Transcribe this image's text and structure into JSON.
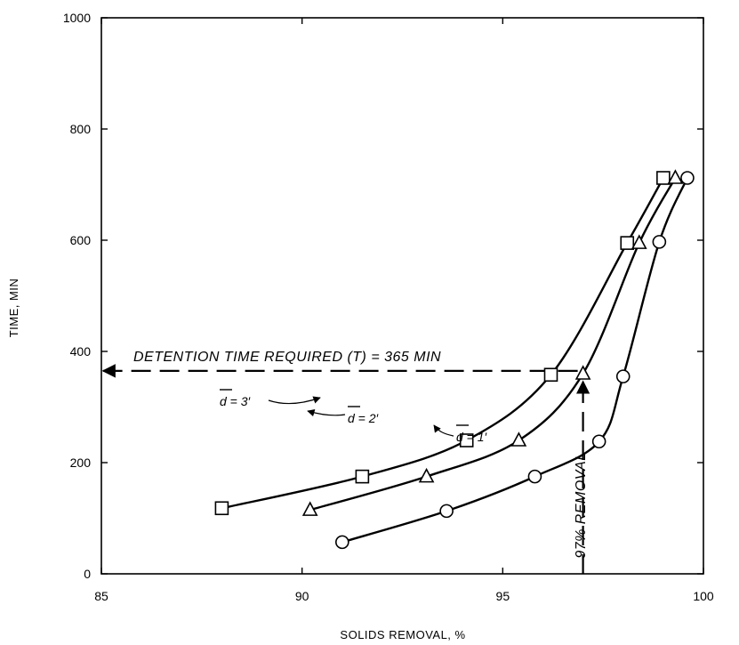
{
  "chart_data": {
    "type": "line",
    "title": "",
    "xlabel": "SOLIDS REMOVAL, %",
    "ylabel": "TIME, MIN",
    "xlim": [
      85,
      100
    ],
    "ylim": [
      0,
      1000
    ],
    "xticks": [
      85,
      90,
      95,
      100
    ],
    "yticks": [
      0,
      200,
      400,
      600,
      800,
      1000
    ],
    "grid": false,
    "series": [
      {
        "name": "d = 3′",
        "marker": "square",
        "x": [
          88.0,
          91.5,
          94.1,
          96.2,
          98.1,
          99.0
        ],
        "y": [
          118,
          175,
          240,
          358,
          595,
          712
        ]
      },
      {
        "name": "d = 2′",
        "marker": "triangle",
        "x": [
          90.2,
          93.1,
          95.4,
          97.0,
          98.4,
          99.3
        ],
        "y": [
          115,
          175,
          240,
          360,
          595,
          712
        ]
      },
      {
        "name": "d = 1′",
        "marker": "circle",
        "x": [
          91.0,
          93.6,
          95.8,
          97.4,
          98.0,
          98.9,
          99.6
        ],
        "y": [
          57,
          113,
          175,
          238,
          355,
          597,
          712
        ]
      }
    ],
    "annotations": {
      "detention_text": "DETENTION TIME REQUIRED (T) = 365 MIN",
      "detention_value": 365,
      "removal_text": "97% REMOVAL",
      "removal_value": 97
    }
  }
}
